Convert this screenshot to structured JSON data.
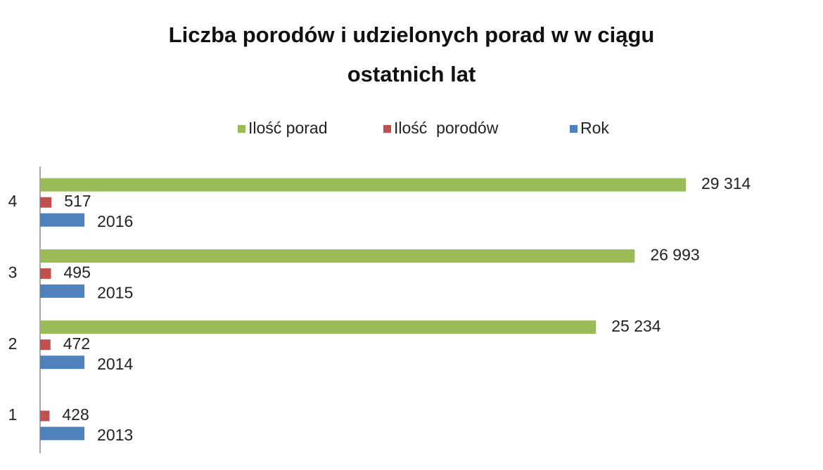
{
  "chart_data": {
    "type": "hbar",
    "title": "Liczba porodów i udzielonych porad w w ciągu ostatnich lat",
    "categories": [
      "1",
      "2",
      "3",
      "4"
    ],
    "series": [
      {
        "name": "Ilość porad",
        "color": "#9bbb59",
        "values": [
          null,
          25234,
          26993,
          29314
        ],
        "value_labels": [
          null,
          "25 234",
          "26 993",
          "29 314"
        ]
      },
      {
        "name": "Ilość  porodów",
        "color": "#c0504d",
        "values": [
          428,
          472,
          495,
          517
        ]
      },
      {
        "name": "Rok",
        "color": "#4f81bd",
        "values": [
          2013,
          2014,
          2015,
          2016
        ]
      }
    ],
    "legend": "top"
  }
}
